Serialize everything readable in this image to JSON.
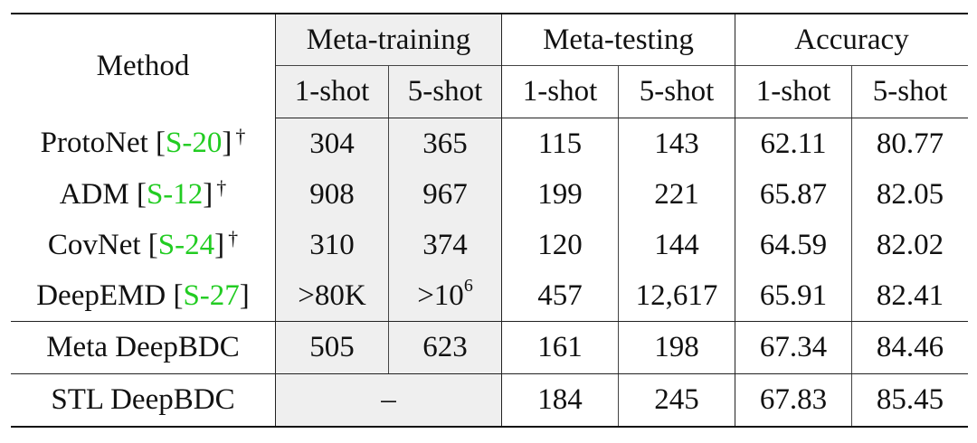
{
  "header": {
    "method": "Method",
    "meta_training": "Meta-training",
    "meta_testing": "Meta-testing",
    "accuracy": "Accuracy",
    "sub": [
      "1-shot",
      "5-shot",
      "1-shot",
      "5-shot",
      "1-shot",
      "5-shot"
    ]
  },
  "rows": [
    {
      "name": "ProtoNet",
      "cite": "S-20",
      "dagger": "†",
      "mt1": "304",
      "mt5": "365",
      "te1": "115",
      "te5": "143",
      "a1": "62.11",
      "a5": "80.77"
    },
    {
      "name": "ADM",
      "cite": "S-12",
      "dagger": "†",
      "mt1": "908",
      "mt5": "967",
      "te1": "199",
      "te5": "221",
      "a1": "65.87",
      "a5": "82.05"
    },
    {
      "name": "CovNet",
      "cite": "S-24",
      "dagger": "†",
      "mt1": "310",
      "mt5": "374",
      "te1": "120",
      "te5": "144",
      "a1": "64.59",
      "a5": "82.02"
    },
    {
      "name": "DeepEMD",
      "cite": "S-27",
      "dagger": "",
      "mt1": ">80K",
      "mt5_base": ">10",
      "mt5_exp": "6",
      "te1": "457",
      "te5": "12,617",
      "a1": "65.91",
      "a5": "82.41"
    },
    {
      "name": "Meta DeepBDC",
      "mt1": "505",
      "mt5": "623",
      "te1": "161",
      "te5": "198",
      "a1": "67.34",
      "a5": "84.46"
    },
    {
      "name": "STL DeepBDC",
      "mt_merged": "–",
      "te1": "184",
      "te5": "245",
      "a1": "67.83",
      "a5": "85.45"
    }
  ],
  "colors": {
    "citation": "#22cc22",
    "shade": "#efefef"
  }
}
